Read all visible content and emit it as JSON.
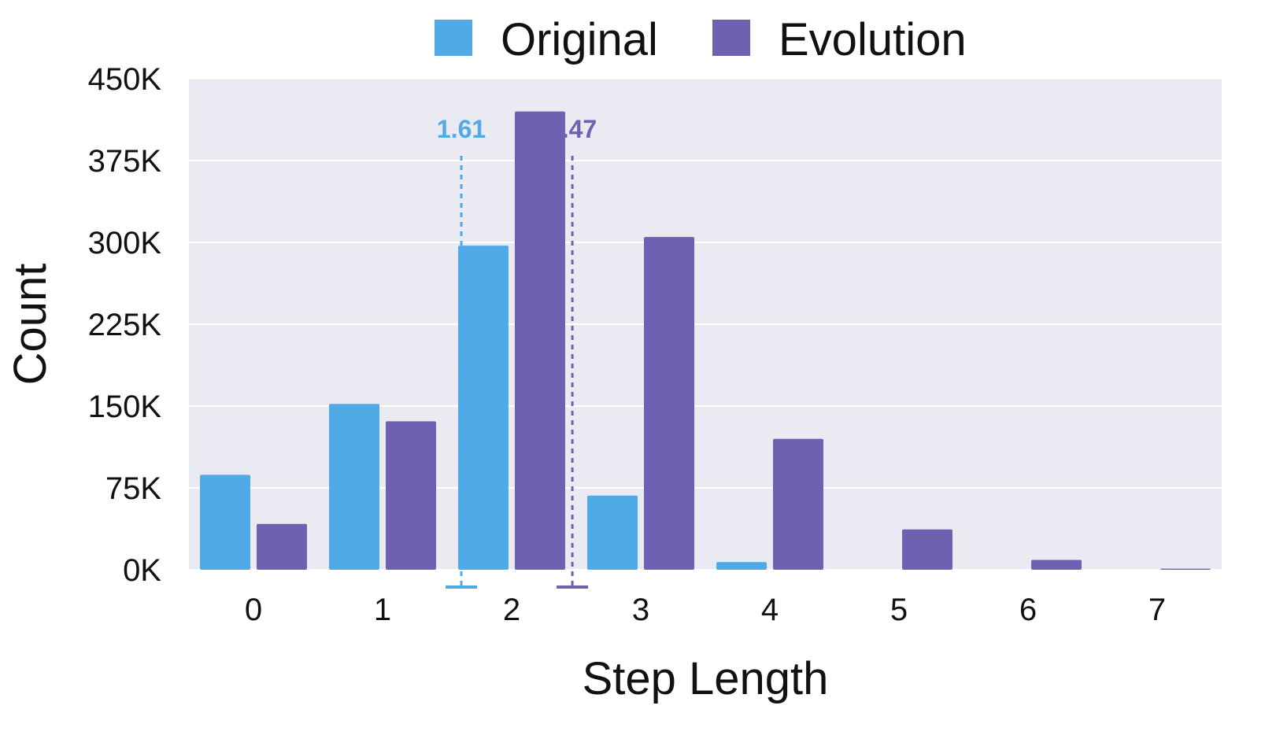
{
  "chart_data": {
    "type": "bar",
    "xlabel": "Step Length",
    "ylabel": "Count",
    "categories": [
      "0",
      "1",
      "2",
      "3",
      "4",
      "5",
      "6",
      "7"
    ],
    "ylim": [
      0,
      450000
    ],
    "yticks": [
      0,
      75000,
      150000,
      225000,
      300000,
      375000,
      450000
    ],
    "ytick_labels": [
      "0K",
      "75K",
      "150K",
      "225K",
      "300K",
      "375K",
      "450K"
    ],
    "grid": "horizontal",
    "legend_position": "top-center",
    "series": [
      {
        "name": "Original",
        "color": "#4FAAE6",
        "values": [
          87000,
          152000,
          297000,
          68000,
          7000,
          0,
          0,
          0
        ]
      },
      {
        "name": "Evolution",
        "color": "#6D62B1",
        "values": [
          42000,
          136000,
          420000,
          305000,
          120000,
          37000,
          9000,
          1000
        ]
      }
    ],
    "means": [
      {
        "series": "Original",
        "value": 1.61,
        "label": "1.61",
        "color": "#4FAAE6"
      },
      {
        "series": "Evolution",
        "value": 2.47,
        "label": "2.47",
        "color": "#6D62B1"
      }
    ]
  }
}
